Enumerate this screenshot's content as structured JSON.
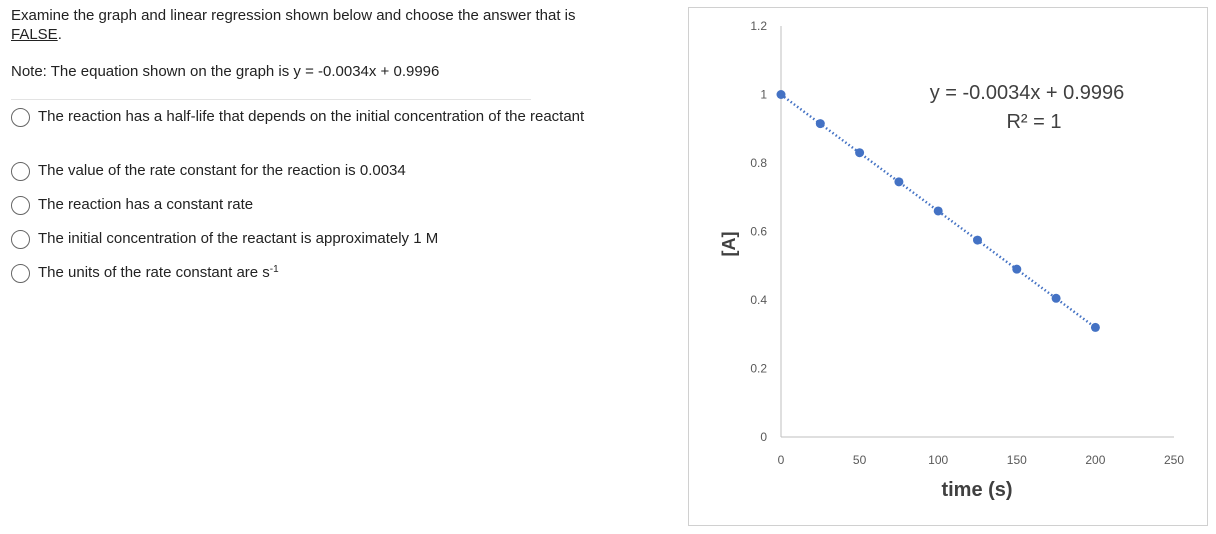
{
  "question": {
    "line1": "Examine the graph and linear regression shown below and choose the answer that is",
    "line2": "FALSE",
    "line2_suffix": ".",
    "note": "Note: The equation shown on the graph is y = -0.0034x + 0.9996"
  },
  "options": [
    {
      "text": "The reaction has a half-life that depends on the initial concentration of the reactant"
    },
    {
      "text": "The value of the rate constant for the reaction is 0.0034"
    },
    {
      "text": "The reaction has a constant rate"
    },
    {
      "text": "The initial concentration of the reactant is approximately 1 M"
    },
    {
      "text": "The units of the rate constant are s",
      "sup": "-1"
    }
  ],
  "chart_data": {
    "type": "scatter",
    "xlabel": "time (s)",
    "ylabel": "[A]",
    "xlim": [
      0,
      250
    ],
    "ylim": [
      0,
      1.2
    ],
    "xticks": [
      "0",
      "50",
      "100",
      "150",
      "200",
      "250"
    ],
    "yticks": [
      "0",
      "0.2",
      "0.4",
      "0.6",
      "0.8",
      "1",
      "1.2"
    ],
    "x": [
      0,
      25,
      50,
      75,
      100,
      125,
      150,
      175,
      200
    ],
    "y": [
      1.0,
      0.915,
      0.83,
      0.745,
      0.66,
      0.575,
      0.49,
      0.405,
      0.32
    ],
    "trendline": {
      "slope": -0.0034,
      "intercept": 0.9996,
      "style": "dotted"
    },
    "equation": "y = -0.0034x + 0.9996",
    "r2": "R² = 1",
    "point_color": "#4472c4",
    "grid": false
  }
}
